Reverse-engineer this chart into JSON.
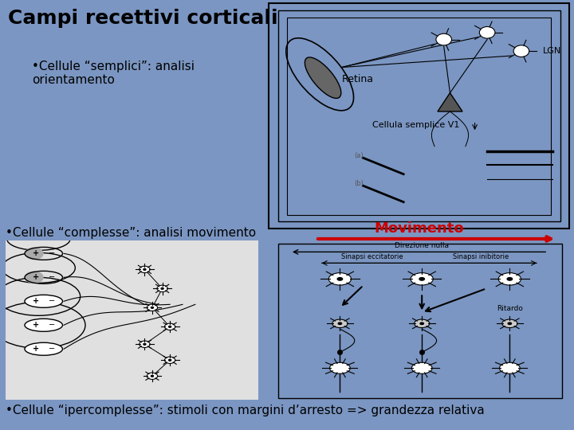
{
  "title": "Campi recettivi corticali",
  "bullet1": "•Cellule “semplici”: analisi\norientamento",
  "bullet2": "•Cellule “complesse”: analisi movimento",
  "bullet3": "•Cellule “ipercomplesse”: stimoli con margini d’arresto => grandezza relativa",
  "movimento_label": "Movimento",
  "retina_label": "Retina",
  "lgn_label": "LGN",
  "cellula_label": "Cellula semplice V1",
  "sinapsi_ec": "Sinapsi eccitatorie",
  "sinapsi_in": "Sinapsi inibitorie",
  "direzione_nulla": "Direzione nulla",
  "ritardo": "Ritardo",
  "bg_blue": "#7b96c2",
  "bg_white": "#ffffff",
  "arrow_color": "#cc0000",
  "title_fontsize": 18,
  "bullet_fontsize": 11,
  "label_fontsize": 9
}
